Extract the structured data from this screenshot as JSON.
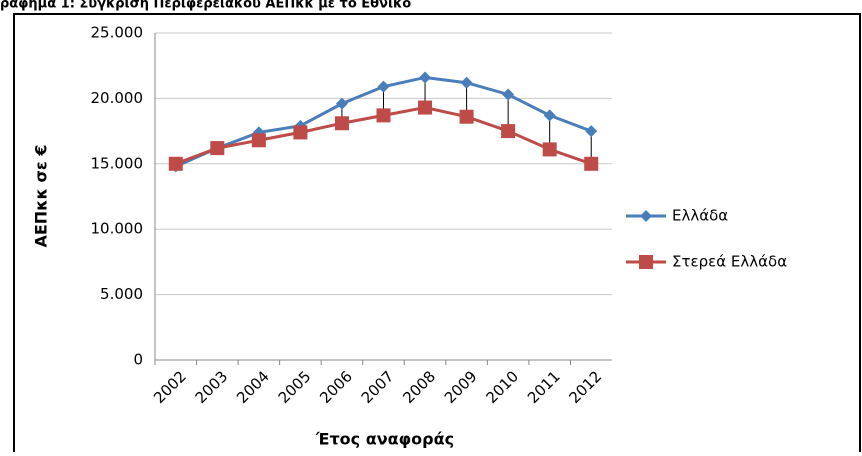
{
  "chart_data": {
    "type": "line",
    "title": "ράφημα 1: Σύγκριση Περιφερειακού ΑΕΠκκ με το Εθνικό",
    "y_label": "ΑΕΠκκ σε €",
    "x_label": "Έτος αναφοράς",
    "categories": [
      "2002",
      "2003",
      "2004",
      "2005",
      "2006",
      "2007",
      "2008",
      "2009",
      "2010",
      "2011",
      "2012"
    ],
    "series": [
      {
        "name": "Ελλάδα",
        "color": "#4a7ebb",
        "marker": "diamond",
        "values": [
          14800,
          16200,
          17400,
          17900,
          19600,
          20900,
          21600,
          21200,
          20300,
          18700,
          17500
        ]
      },
      {
        "name": "Στερεά Ελλάδα",
        "color": "#be4b48",
        "marker": "square",
        "values": [
          15000,
          16200,
          16800,
          17400,
          18100,
          18700,
          19300,
          18600,
          17500,
          16100,
          15000
        ]
      }
    ],
    "ylim": [
      0,
      25000
    ],
    "yticks": [
      0,
      {
        "value": 5000,
        "label": "5.000"
      },
      {
        "value": 10000,
        "label": "10.000"
      },
      {
        "value": 15000,
        "label": "15.000"
      },
      {
        "value": 20000,
        "label": "20.000"
      },
      {
        "value": 25000,
        "label": "25.000"
      }
    ],
    "grid": true,
    "drop_lines": true,
    "legend": "right"
  }
}
